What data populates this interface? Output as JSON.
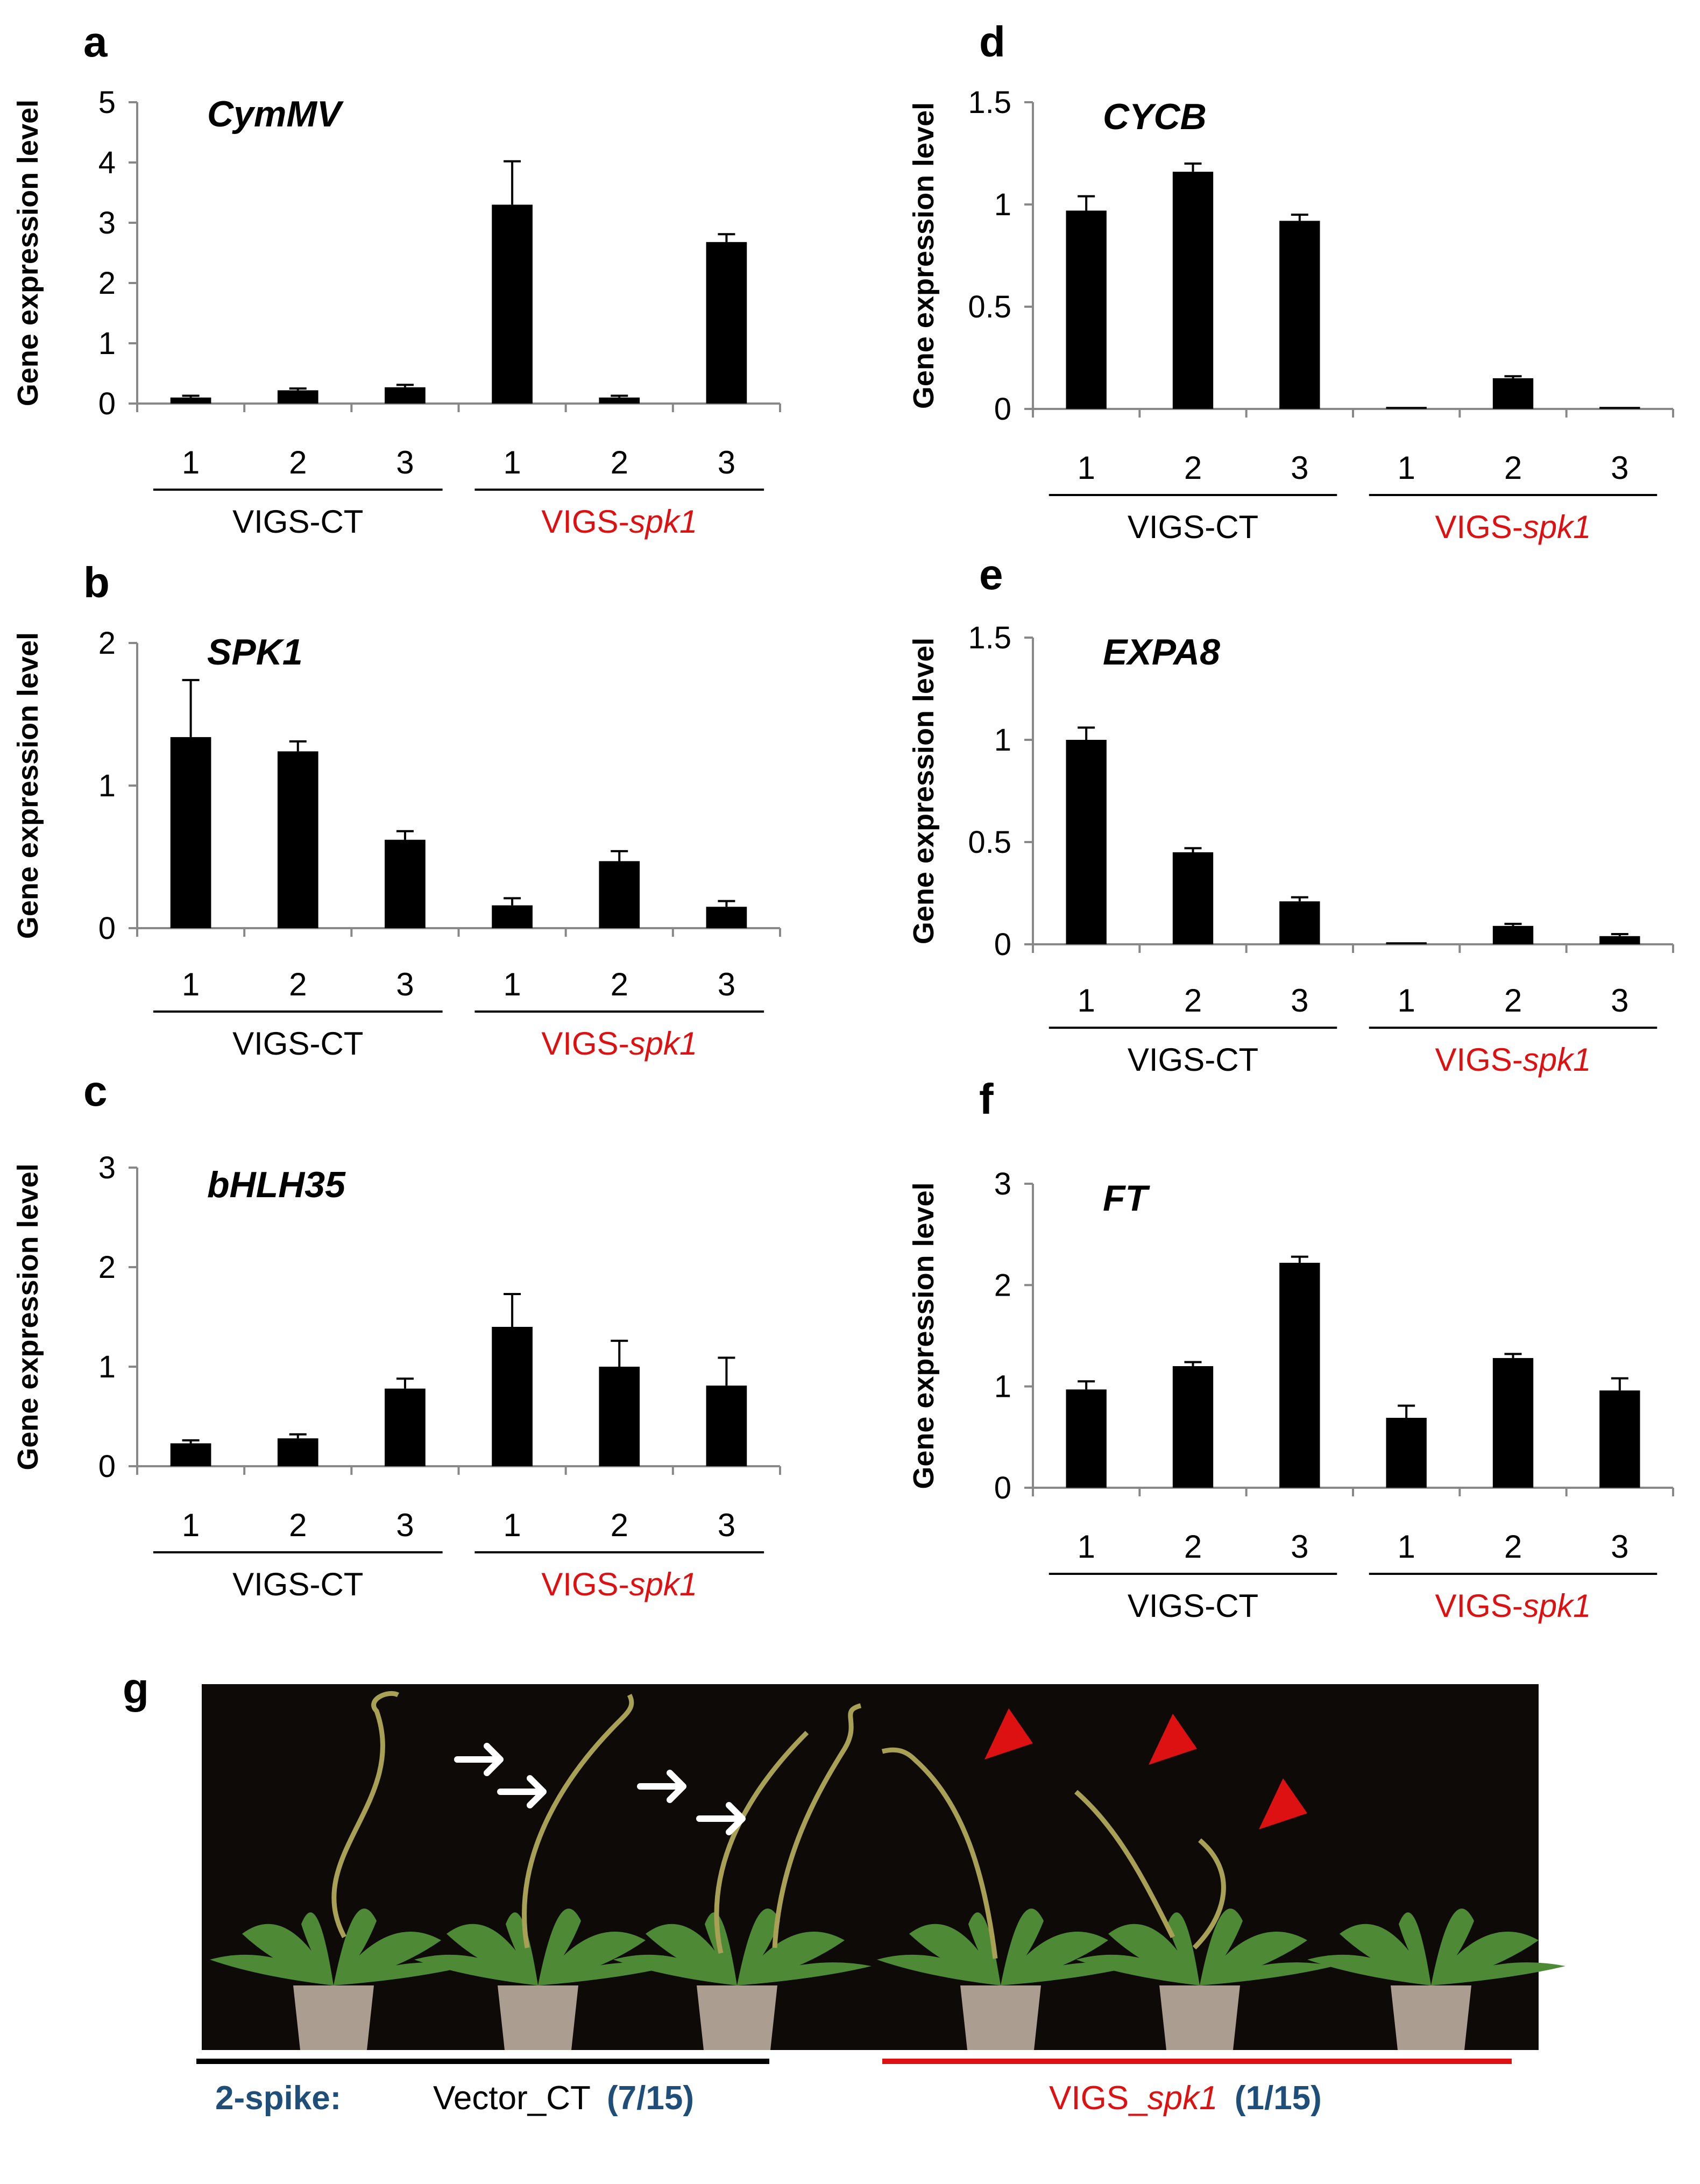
{
  "chart_data": [
    {
      "panel": "a",
      "type": "bar",
      "title": "CymMV",
      "ylabel": "Gene expression level",
      "ylim": [
        0,
        5
      ],
      "yticks": [
        0,
        1,
        2,
        3,
        4,
        5
      ],
      "ytick_labels": [
        "0",
        "1",
        "2",
        "3",
        "4",
        "5"
      ],
      "categories": [
        "1",
        "2",
        "3",
        "1",
        "2",
        "3"
      ],
      "groups": [
        {
          "prefix": "VIGS-CT",
          "suffix": "",
          "color": "#000000"
        },
        {
          "prefix": "VIGS-",
          "suffix": "spk1",
          "color": "#dd1111"
        }
      ],
      "values": [
        0.1,
        0.22,
        0.27,
        3.3,
        0.1,
        2.68
      ],
      "errors": [
        0.03,
        0.03,
        0.04,
        0.72,
        0.03,
        0.13
      ]
    },
    {
      "panel": "b",
      "type": "bar",
      "title": "SPK1",
      "ylabel": "Gene expression level",
      "ylim": [
        0,
        2
      ],
      "yticks": [
        0,
        1,
        2
      ],
      "ytick_labels": [
        "0",
        "1",
        "2"
      ],
      "categories": [
        "1",
        "2",
        "3",
        "1",
        "2",
        "3"
      ],
      "groups": [
        {
          "prefix": "VIGS-CT",
          "suffix": "",
          "color": "#000000"
        },
        {
          "prefix": "VIGS-",
          "suffix": "spk1",
          "color": "#dd1111"
        }
      ],
      "values": [
        1.34,
        1.24,
        0.62,
        0.16,
        0.47,
        0.15
      ],
      "errors": [
        0.4,
        0.07,
        0.06,
        0.05,
        0.07,
        0.04
      ]
    },
    {
      "panel": "c",
      "type": "bar",
      "title": "bHLH35",
      "ylabel": "Gene expression level",
      "ylim": [
        0,
        3
      ],
      "yticks": [
        0,
        1,
        2,
        3
      ],
      "ytick_labels": [
        "0",
        "1",
        "2",
        "3"
      ],
      "categories": [
        "1",
        "2",
        "3",
        "1",
        "2",
        "3"
      ],
      "groups": [
        {
          "prefix": "VIGS-CT",
          "suffix": "",
          "color": "#000000"
        },
        {
          "prefix": "VIGS-",
          "suffix": "spk1",
          "color": "#dd1111"
        }
      ],
      "values": [
        0.23,
        0.28,
        0.78,
        1.4,
        1.0,
        0.81
      ],
      "errors": [
        0.03,
        0.04,
        0.1,
        0.33,
        0.26,
        0.28
      ]
    },
    {
      "panel": "d",
      "type": "bar",
      "title": "CYCB",
      "ylabel": "Gene expression level",
      "ylim": [
        0,
        1.5
      ],
      "yticks": [
        0,
        0.5,
        1,
        1.5
      ],
      "ytick_labels": [
        "0",
        "0.5",
        "1",
        "1.5"
      ],
      "categories": [
        "1",
        "2",
        "3",
        "1",
        "2",
        "3"
      ],
      "groups": [
        {
          "prefix": "VIGS-CT",
          "suffix": "",
          "color": "#000000"
        },
        {
          "prefix": "VIGS-",
          "suffix": "spk1",
          "color": "#dd1111"
        }
      ],
      "values": [
        0.97,
        1.16,
        0.92,
        0.01,
        0.15,
        0.01
      ],
      "errors": [
        0.07,
        0.04,
        0.03,
        0.0,
        0.01,
        0.0
      ]
    },
    {
      "panel": "e",
      "type": "bar",
      "title": "EXPA8",
      "ylabel": "Gene expression level",
      "ylim": [
        0,
        1.5
      ],
      "yticks": [
        0,
        0.5,
        1,
        1.5
      ],
      "ytick_labels": [
        "0",
        "0.5",
        "1",
        "1.5"
      ],
      "categories": [
        "1",
        "2",
        "3",
        "1",
        "2",
        "3"
      ],
      "groups": [
        {
          "prefix": "VIGS-CT",
          "suffix": "",
          "color": "#000000"
        },
        {
          "prefix": "VIGS-",
          "suffix": "spk1",
          "color": "#dd1111"
        }
      ],
      "values": [
        1.0,
        0.45,
        0.21,
        0.01,
        0.09,
        0.04
      ],
      "errors": [
        0.06,
        0.02,
        0.02,
        0.0,
        0.01,
        0.01
      ]
    },
    {
      "panel": "f",
      "type": "bar",
      "title": "FT",
      "ylabel": "Gene expression level",
      "ylim": [
        0,
        3
      ],
      "yticks": [
        0,
        1,
        2,
        3
      ],
      "ytick_labels": [
        "0",
        "1",
        "2",
        "3"
      ],
      "categories": [
        "1",
        "2",
        "3",
        "1",
        "2",
        "3"
      ],
      "groups": [
        {
          "prefix": "VIGS-CT",
          "suffix": "",
          "color": "#000000"
        },
        {
          "prefix": "VIGS-",
          "suffix": "spk1",
          "color": "#dd1111"
        }
      ],
      "values": [
        0.97,
        1.2,
        2.22,
        0.69,
        1.28,
        0.96
      ],
      "errors": [
        0.08,
        0.04,
        0.06,
        0.12,
        0.04,
        0.12
      ]
    }
  ],
  "photo": {
    "panel": "g",
    "legend_title": "2-spike:",
    "control_label": "Vector_CT",
    "control_count": "(7/15)",
    "treatment_prefix": "VIGS_",
    "treatment_suffix": "spk1",
    "treatment_count": "(1/15)",
    "colors": {
      "background": "#0d0a08",
      "title": "#1f4e79",
      "control_bar": "#000000",
      "treatment_bar": "#dd1111",
      "arrow": "#ffffff",
      "arrowhead": "#dd1111",
      "leaf": "#4e8a36",
      "stem": "#a8a055",
      "pot": "#c8b9a8"
    }
  }
}
